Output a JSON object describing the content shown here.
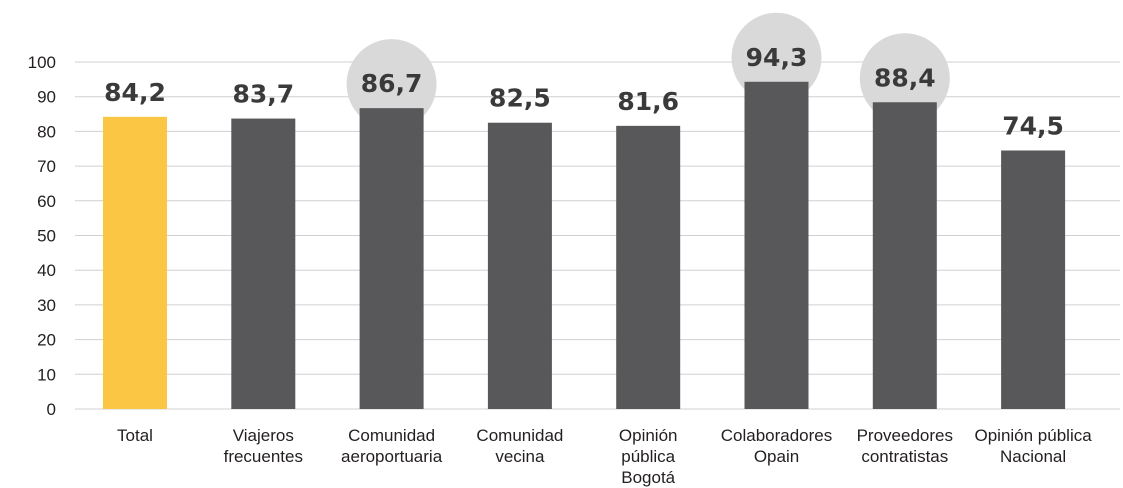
{
  "chart_data": {
    "type": "bar",
    "categories": [
      [
        "Total"
      ],
      [
        "Viajeros",
        "frecuentes"
      ],
      [
        "Comunidad",
        "aeroportuaria"
      ],
      [
        "Comunidad",
        "vecina"
      ],
      [
        "Opinión",
        "pública",
        "Bogotá"
      ],
      [
        "Colaboradores",
        "Opain"
      ],
      [
        "Proveedores",
        "contratistas"
      ],
      [
        "Opinión pública",
        "Nacional"
      ]
    ],
    "values": [
      84.2,
      83.7,
      86.7,
      82.5,
      81.6,
      94.3,
      88.4,
      74.5
    ],
    "value_labels": [
      "84,2",
      "83,7",
      "86,7",
      "82,5",
      "81,6",
      "94,3",
      "88,4",
      "74,5"
    ],
    "highlighted": [
      false,
      false,
      true,
      false,
      false,
      true,
      true,
      false
    ],
    "ylim": [
      0,
      100
    ],
    "yticks": [
      0,
      10,
      20,
      30,
      40,
      50,
      60,
      70,
      80,
      90,
      100
    ],
    "grid": true,
    "legend": "none",
    "title": "",
    "xlabel": "",
    "ylabel": "",
    "colors": {
      "first_bar": "#fbc644",
      "bar": "#58585a",
      "highlight_circle": "#d9d9d9",
      "gridline": "#d0d0d0",
      "text": "#231f20",
      "value_text": "#3a3a3a"
    }
  }
}
